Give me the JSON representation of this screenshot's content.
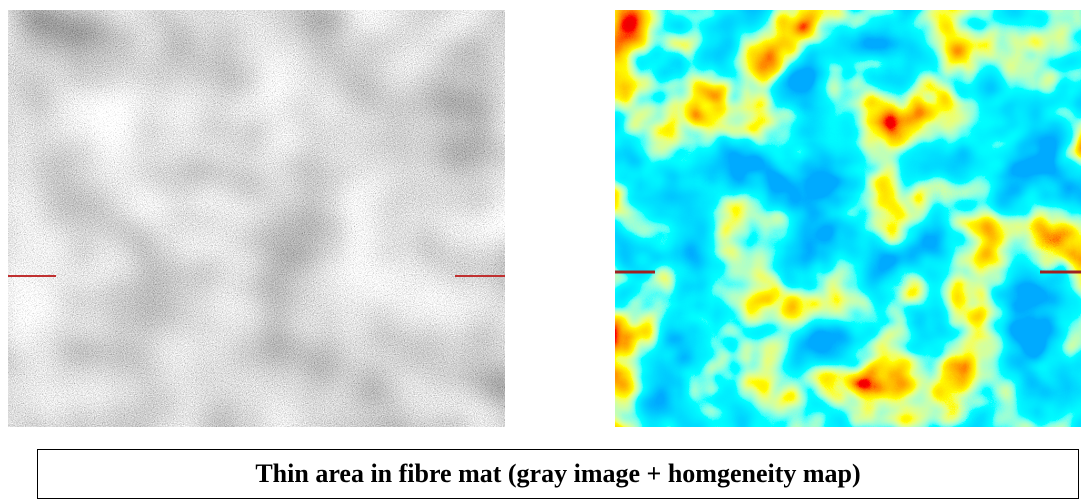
{
  "caption": "Thin area in fibre mat (gray image + homgeneity map)"
}
